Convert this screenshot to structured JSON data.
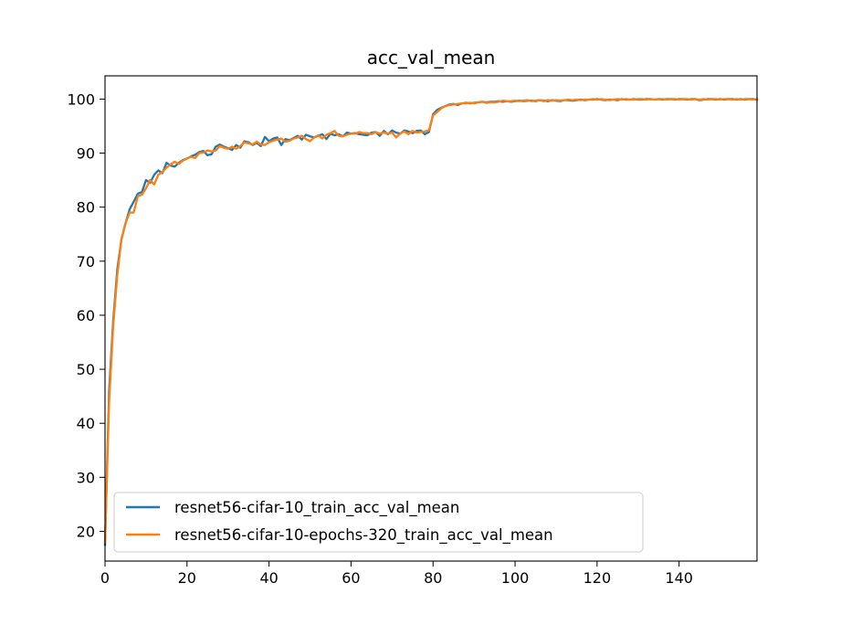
{
  "chart_data": {
    "type": "line",
    "title": "acc_val_mean",
    "xlabel": "",
    "ylabel": "",
    "xlim": [
      0,
      159
    ],
    "ylim": [
      14.5,
      104.3
    ],
    "xticks": [
      0,
      20,
      40,
      60,
      80,
      100,
      120,
      140
    ],
    "yticks": [
      20,
      30,
      40,
      50,
      60,
      70,
      80,
      90,
      100
    ],
    "grid": false,
    "legend_position": "lower-left",
    "series": [
      {
        "name": "resnet56-cifar-10_train_acc_val_mean",
        "color": "#1f77b4",
        "points": [
          [
            0,
            17.5
          ],
          [
            1,
            46
          ],
          [
            2,
            59
          ],
          [
            3,
            68.5
          ],
          [
            4,
            74
          ],
          [
            5,
            77
          ],
          [
            6,
            79.6
          ],
          [
            7,
            81
          ],
          [
            8,
            82.5
          ],
          [
            9,
            82.8
          ],
          [
            10,
            85
          ],
          [
            11,
            84.5
          ],
          [
            12,
            86
          ],
          [
            13,
            86.8
          ],
          [
            14,
            86.3
          ],
          [
            15,
            88.2
          ],
          [
            16,
            87.7
          ],
          [
            17,
            87.5
          ],
          [
            18,
            88.2
          ],
          [
            19,
            88.7
          ],
          [
            20,
            89
          ],
          [
            21,
            89.4
          ],
          [
            22,
            89.7
          ],
          [
            23,
            90.2
          ],
          [
            24,
            90.4
          ],
          [
            25,
            89.6
          ],
          [
            26,
            89.8
          ],
          [
            27,
            91.2
          ],
          [
            28,
            91.6
          ],
          [
            29,
            91.2
          ],
          [
            30,
            90.9
          ],
          [
            31,
            90.6
          ],
          [
            32,
            91.5
          ],
          [
            33,
            91
          ],
          [
            34,
            92.2
          ],
          [
            35,
            92
          ],
          [
            36,
            91.5
          ],
          [
            37,
            91.9
          ],
          [
            38,
            91.3
          ],
          [
            39,
            93
          ],
          [
            40,
            92.2
          ],
          [
            41,
            92.7
          ],
          [
            42,
            92.9
          ],
          [
            43,
            91.5
          ],
          [
            44,
            92.6
          ],
          [
            45,
            92.4
          ],
          [
            46,
            92.8
          ],
          [
            47,
            93.2
          ],
          [
            48,
            92.5
          ],
          [
            49,
            93.4
          ],
          [
            50,
            93.1
          ],
          [
            51,
            92.9
          ],
          [
            52,
            93.2
          ],
          [
            53,
            93.5
          ],
          [
            54,
            92.6
          ],
          [
            55,
            93.6
          ],
          [
            56,
            93.3
          ],
          [
            57,
            93.5
          ],
          [
            58,
            93.1
          ],
          [
            59,
            93.8
          ],
          [
            60,
            93.6
          ],
          [
            61,
            93.7
          ],
          [
            62,
            93.5
          ],
          [
            63,
            93.4
          ],
          [
            64,
            93.3
          ],
          [
            65,
            93.8
          ],
          [
            66,
            93.9
          ],
          [
            67,
            93.2
          ],
          [
            68,
            94.1
          ],
          [
            69,
            93.5
          ],
          [
            70,
            94.2
          ],
          [
            71,
            93.8
          ],
          [
            72,
            93.6
          ],
          [
            73,
            94.2
          ],
          [
            74,
            94
          ],
          [
            75,
            93.7
          ],
          [
            76,
            94.1
          ],
          [
            77,
            94.2
          ],
          [
            78,
            93.5
          ],
          [
            79,
            93.9
          ],
          [
            80,
            97.2
          ],
          [
            81,
            98
          ],
          [
            82,
            98.4
          ],
          [
            83,
            98.7
          ],
          [
            84,
            99
          ],
          [
            85,
            99.1
          ],
          [
            86,
            98.9
          ],
          [
            87,
            99.2
          ],
          [
            88,
            99.3
          ],
          [
            89,
            99.2
          ],
          [
            90,
            99.3
          ],
          [
            91,
            99.4
          ],
          [
            92,
            99.5
          ],
          [
            93,
            99.4
          ],
          [
            94,
            99.5
          ],
          [
            95,
            99.5
          ],
          [
            96,
            99.6
          ],
          [
            97,
            99.5
          ],
          [
            98,
            99.6
          ],
          [
            99,
            99.5
          ],
          [
            100,
            99.6
          ],
          [
            101,
            99.7
          ],
          [
            102,
            99.6
          ],
          [
            103,
            99.7
          ],
          [
            104,
            99.7
          ],
          [
            105,
            99.6
          ],
          [
            106,
            99.8
          ],
          [
            107,
            99.7
          ],
          [
            108,
            99.6
          ],
          [
            109,
            99.8
          ],
          [
            110,
            99.7
          ],
          [
            111,
            99.6
          ],
          [
            112,
            99.8
          ],
          [
            113,
            99.8
          ],
          [
            114,
            99.7
          ],
          [
            115,
            99.8
          ],
          [
            116,
            99.9
          ],
          [
            117,
            99.8
          ],
          [
            118,
            99.9
          ],
          [
            119,
            99.9
          ],
          [
            120,
            100
          ],
          [
            121,
            99.9
          ],
          [
            122,
            99.8
          ],
          [
            123,
            99.9
          ],
          [
            124,
            99.9
          ],
          [
            125,
            99.8
          ],
          [
            126,
            100
          ],
          [
            127,
            99.9
          ],
          [
            128,
            99.9
          ],
          [
            129,
            100
          ],
          [
            130,
            99.9
          ],
          [
            131,
            99.9
          ],
          [
            132,
            100
          ],
          [
            133,
            100
          ],
          [
            134,
            99.9
          ],
          [
            135,
            100
          ],
          [
            136,
            99.9
          ],
          [
            137,
            100
          ],
          [
            138,
            100
          ],
          [
            139,
            99.9
          ],
          [
            140,
            100
          ],
          [
            141,
            100
          ],
          [
            142,
            99.9
          ],
          [
            143,
            100
          ],
          [
            144,
            100
          ],
          [
            145,
            99.8
          ],
          [
            146,
            99.9
          ],
          [
            147,
            100
          ],
          [
            148,
            100
          ],
          [
            149,
            99.9
          ],
          [
            150,
            100
          ],
          [
            151,
            99.9
          ],
          [
            152,
            100
          ],
          [
            153,
            100
          ],
          [
            154,
            99.9
          ],
          [
            155,
            100
          ],
          [
            156,
            99.9
          ],
          [
            157,
            100
          ],
          [
            158,
            100
          ],
          [
            159,
            99.9
          ]
        ]
      },
      {
        "name": "resnet56-cifar-10-epochs-320_train_acc_val_mean",
        "color": "#ff7f0e",
        "points": [
          [
            0,
            18
          ],
          [
            1,
            44
          ],
          [
            2,
            58
          ],
          [
            3,
            67.5
          ],
          [
            4,
            74
          ],
          [
            5,
            77
          ],
          [
            6,
            79
          ],
          [
            7,
            79
          ],
          [
            8,
            82
          ],
          [
            9,
            82.3
          ],
          [
            10,
            83.5
          ],
          [
            11,
            85
          ],
          [
            12,
            84.2
          ],
          [
            13,
            86
          ],
          [
            14,
            86.5
          ],
          [
            15,
            87.3
          ],
          [
            16,
            87.9
          ],
          [
            17,
            88.4
          ],
          [
            18,
            88
          ],
          [
            19,
            88.6
          ],
          [
            20,
            89
          ],
          [
            21,
            89.3
          ],
          [
            22,
            89.1
          ],
          [
            23,
            90
          ],
          [
            24,
            90.1
          ],
          [
            25,
            90.5
          ],
          [
            26,
            90.3
          ],
          [
            27,
            90.5
          ],
          [
            28,
            91.3
          ],
          [
            29,
            91
          ],
          [
            30,
            90.8
          ],
          [
            31,
            91.2
          ],
          [
            32,
            90.8
          ],
          [
            33,
            91.3
          ],
          [
            34,
            92
          ],
          [
            35,
            91.8
          ],
          [
            36,
            91.6
          ],
          [
            37,
            92.1
          ],
          [
            38,
            91.6
          ],
          [
            39,
            91.5
          ],
          [
            40,
            92
          ],
          [
            41,
            92.3
          ],
          [
            42,
            92.5
          ],
          [
            43,
            92.7
          ],
          [
            44,
            92.1
          ],
          [
            45,
            92.3
          ],
          [
            46,
            92.7
          ],
          [
            47,
            92.9
          ],
          [
            48,
            93.2
          ],
          [
            49,
            92.6
          ],
          [
            50,
            92.2
          ],
          [
            51,
            92.9
          ],
          [
            52,
            93.3
          ],
          [
            53,
            92.7
          ],
          [
            54,
            93.4
          ],
          [
            55,
            93.7
          ],
          [
            56,
            94.1
          ],
          [
            57,
            93.2
          ],
          [
            58,
            93.1
          ],
          [
            59,
            93.4
          ],
          [
            60,
            93.6
          ],
          [
            61,
            93.6
          ],
          [
            62,
            93.9
          ],
          [
            63,
            93.7
          ],
          [
            64,
            93.7
          ],
          [
            65,
            93.5
          ],
          [
            66,
            93.9
          ],
          [
            67,
            93.6
          ],
          [
            68,
            93.8
          ],
          [
            69,
            93.6
          ],
          [
            70,
            93.8
          ],
          [
            71,
            92.9
          ],
          [
            72,
            93.6
          ],
          [
            73,
            94
          ],
          [
            74,
            93.5
          ],
          [
            75,
            94.1
          ],
          [
            76,
            93.8
          ],
          [
            77,
            93.9
          ],
          [
            78,
            94
          ],
          [
            79,
            94.2
          ],
          [
            80,
            97
          ],
          [
            81,
            97.6
          ],
          [
            82,
            98.3
          ],
          [
            83,
            98.7
          ],
          [
            84,
            98.9
          ],
          [
            85,
            99
          ],
          [
            86,
            99.1
          ],
          [
            87,
            99.2
          ],
          [
            88,
            99.2
          ],
          [
            89,
            99.3
          ],
          [
            90,
            99.2
          ],
          [
            91,
            99.4
          ],
          [
            92,
            99.5
          ],
          [
            93,
            99.3
          ],
          [
            94,
            99.4
          ],
          [
            95,
            99.4
          ],
          [
            96,
            99.5
          ],
          [
            97,
            99.7
          ],
          [
            98,
            99.6
          ],
          [
            99,
            99.6
          ],
          [
            100,
            99.7
          ],
          [
            101,
            99.6
          ],
          [
            102,
            99.7
          ],
          [
            103,
            99.8
          ],
          [
            104,
            99.6
          ],
          [
            105,
            99.7
          ],
          [
            106,
            99.8
          ],
          [
            107,
            99.6
          ],
          [
            108,
            99.8
          ],
          [
            109,
            99.7
          ],
          [
            110,
            99.8
          ],
          [
            111,
            99.7
          ],
          [
            112,
            99.8
          ],
          [
            113,
            99.9
          ],
          [
            114,
            99.8
          ],
          [
            115,
            99.9
          ],
          [
            116,
            99.8
          ],
          [
            117,
            99.9
          ],
          [
            118,
            99.9
          ],
          [
            119,
            100
          ],
          [
            120,
            99.9
          ],
          [
            121,
            100
          ],
          [
            122,
            99.9
          ],
          [
            123,
            99.8
          ],
          [
            124,
            99.9
          ],
          [
            125,
            100
          ],
          [
            126,
            99.9
          ],
          [
            127,
            100
          ],
          [
            128,
            99.9
          ],
          [
            129,
            99.9
          ],
          [
            130,
            100
          ],
          [
            131,
            100
          ],
          [
            132,
            99.9
          ],
          [
            133,
            100
          ],
          [
            134,
            99.9
          ],
          [
            135,
            100
          ],
          [
            136,
            100
          ],
          [
            137,
            99.9
          ],
          [
            138,
            100
          ],
          [
            139,
            100
          ],
          [
            140,
            99.9
          ],
          [
            141,
            100
          ],
          [
            142,
            100
          ],
          [
            143,
            99.9
          ],
          [
            144,
            100
          ],
          [
            145,
            99.9
          ],
          [
            146,
            100
          ],
          [
            147,
            99.9
          ],
          [
            148,
            100
          ],
          [
            149,
            100
          ],
          [
            150,
            99.9
          ],
          [
            151,
            100
          ],
          [
            152,
            100
          ],
          [
            153,
            99.9
          ],
          [
            154,
            100
          ],
          [
            155,
            99.9
          ],
          [
            156,
            100
          ],
          [
            157,
            100
          ],
          [
            158,
            99.9
          ],
          [
            159,
            100
          ]
        ]
      }
    ]
  }
}
